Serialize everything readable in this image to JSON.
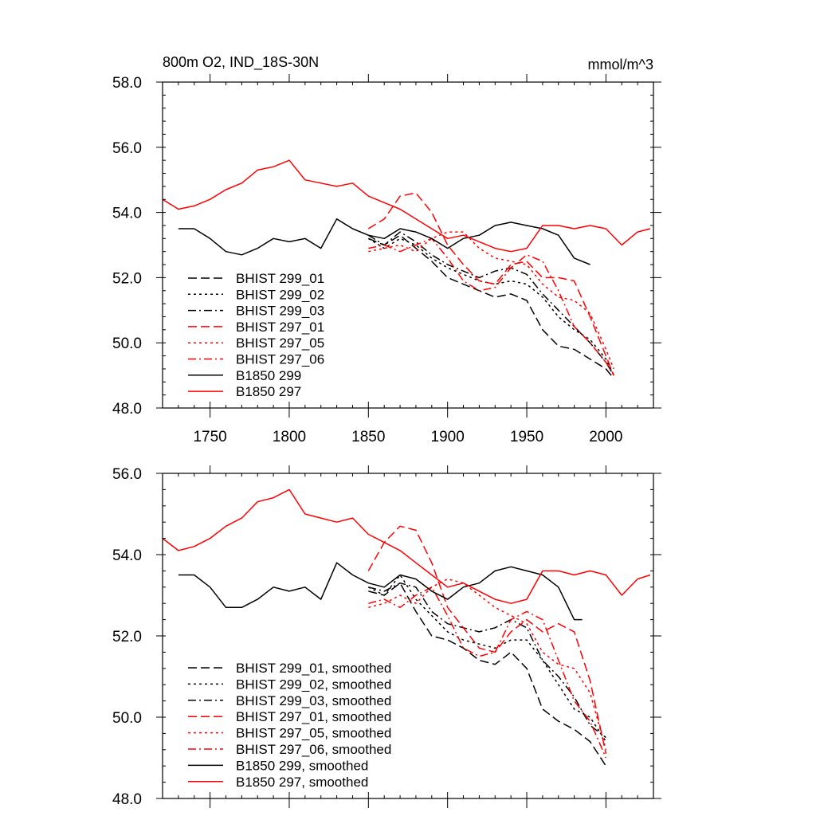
{
  "chart_data": [
    {
      "type": "line",
      "title": "800m O2, IND_18S-30N",
      "units_label": "mmol/m^3",
      "xlim": [
        1720,
        2030
      ],
      "ylim": [
        48,
        58
      ],
      "xticks": [
        1750,
        1800,
        1850,
        1900,
        1950,
        2000
      ],
      "xtick_labels": [
        "1750",
        "1800",
        "1850",
        "1900",
        "1950",
        "2000"
      ],
      "yticks": [
        48,
        50,
        52,
        54,
        56,
        58
      ],
      "ytick_labels": [
        "48.0",
        "50.0",
        "52.0",
        "54.0",
        "56.0",
        "58.0"
      ],
      "grid": false,
      "legend_position": "lower-left",
      "series": [
        {
          "name": "BHIST 299_01",
          "color": "#000000",
          "dash": "dash",
          "x": [
            1850,
            1860,
            1870,
            1880,
            1890,
            1900,
            1910,
            1920,
            1930,
            1940,
            1950,
            1960,
            1970,
            1980,
            1990,
            2000,
            2005
          ],
          "y": [
            53.2,
            53.0,
            53.3,
            52.9,
            52.5,
            52.0,
            51.8,
            51.6,
            51.4,
            51.5,
            51.3,
            50.4,
            49.9,
            49.8,
            49.5,
            49.2,
            48.9
          ]
        },
        {
          "name": "BHIST 299_02",
          "color": "#000000",
          "dash": "dot",
          "x": [
            1850,
            1860,
            1870,
            1880,
            1890,
            1900,
            1910,
            1920,
            1930,
            1940,
            1950,
            1960,
            1970,
            1980,
            1990,
            2000,
            2005
          ],
          "y": [
            53.2,
            52.9,
            53.2,
            53.0,
            52.6,
            52.3,
            52.1,
            51.9,
            51.8,
            51.9,
            51.8,
            51.4,
            50.8,
            50.4,
            50.1,
            49.5,
            49.0
          ]
        },
        {
          "name": "BHIST 299_03",
          "color": "#000000",
          "dash": "dashdot",
          "x": [
            1850,
            1860,
            1870,
            1880,
            1890,
            1900,
            1910,
            1920,
            1930,
            1940,
            1950,
            1960,
            1970,
            1980,
            1990,
            2000,
            2005
          ],
          "y": [
            53.3,
            53.0,
            53.4,
            53.1,
            52.7,
            52.4,
            52.2,
            52.0,
            52.2,
            52.3,
            52.1,
            51.5,
            51.0,
            50.5,
            50.0,
            49.4,
            49.0
          ]
        },
        {
          "name": "BHIST 297_01",
          "color": "#ff0000",
          "dash": "dash",
          "x": [
            1850,
            1860,
            1870,
            1880,
            1890,
            1900,
            1910,
            1920,
            1930,
            1940,
            1950,
            1960,
            1970,
            1980,
            1990,
            2000,
            2005
          ],
          "y": [
            53.5,
            53.8,
            54.5,
            54.6,
            54.0,
            53.0,
            52.4,
            51.9,
            51.8,
            52.4,
            52.5,
            52.0,
            52.0,
            51.9,
            50.8,
            49.6,
            49.0
          ]
        },
        {
          "name": "BHIST 297_05",
          "color": "#ff0000",
          "dash": "dot",
          "x": [
            1850,
            1860,
            1870,
            1880,
            1890,
            1900,
            1910,
            1920,
            1930,
            1940,
            1950,
            1960,
            1970,
            1980,
            1990,
            2000,
            2005
          ],
          "y": [
            52.8,
            52.9,
            53.0,
            52.8,
            53.2,
            53.4,
            53.4,
            52.9,
            52.6,
            52.5,
            52.4,
            51.8,
            51.4,
            51.3,
            50.9,
            49.8,
            49.2
          ]
        },
        {
          "name": "BHIST 297_06",
          "color": "#ff0000",
          "dash": "dashdot",
          "x": [
            1850,
            1860,
            1870,
            1880,
            1890,
            1900,
            1910,
            1920,
            1930,
            1940,
            1950,
            1960,
            1970,
            1980,
            1990,
            2000,
            2005
          ],
          "y": [
            52.9,
            53.0,
            52.8,
            53.0,
            53.2,
            52.6,
            51.9,
            51.6,
            51.7,
            52.3,
            52.7,
            52.5,
            51.6,
            50.5,
            50.0,
            49.4,
            49.0
          ]
        },
        {
          "name": "B1850 299",
          "color": "#000000",
          "dash": "solid",
          "x": [
            1730,
            1740,
            1750,
            1760,
            1770,
            1780,
            1790,
            1800,
            1810,
            1820,
            1830,
            1840,
            1850,
            1860,
            1870,
            1880,
            1890,
            1900,
            1910,
            1920,
            1930,
            1940,
            1950,
            1960,
            1970,
            1980,
            1990
          ],
          "y": [
            53.5,
            53.5,
            53.2,
            52.8,
            52.7,
            52.9,
            53.2,
            53.1,
            53.2,
            52.9,
            53.8,
            53.5,
            53.3,
            53.2,
            53.5,
            53.4,
            53.2,
            52.9,
            53.2,
            53.3,
            53.6,
            53.7,
            53.6,
            53.5,
            53.3,
            52.6,
            52.4
          ]
        },
        {
          "name": "B1850 297",
          "color": "#ff0000",
          "dash": "solid",
          "x": [
            1720,
            1730,
            1740,
            1750,
            1760,
            1770,
            1780,
            1790,
            1800,
            1810,
            1820,
            1830,
            1840,
            1850,
            1860,
            1870,
            1880,
            1890,
            1900,
            1910,
            1920,
            1930,
            1940,
            1950,
            1960,
            1970,
            1980,
            1990,
            2000,
            2010,
            2020,
            2028
          ],
          "y": [
            54.4,
            54.1,
            54.2,
            54.4,
            54.7,
            54.9,
            55.3,
            55.4,
            55.6,
            55.0,
            54.9,
            54.8,
            54.9,
            54.5,
            54.3,
            54.1,
            53.8,
            53.5,
            53.2,
            53.3,
            53.1,
            52.9,
            52.8,
            52.9,
            53.6,
            53.6,
            53.5,
            53.6,
            53.5,
            53.0,
            53.4,
            53.5
          ]
        }
      ]
    },
    {
      "type": "line",
      "xlim": [
        1720,
        2030
      ],
      "ylim": [
        48,
        56
      ],
      "xticks": [
        1750,
        1800,
        1850,
        1900,
        1950,
        2000
      ],
      "yticks": [
        48,
        50,
        52,
        54,
        56
      ],
      "ytick_labels": [
        "48.0",
        "50.0",
        "52.0",
        "54.0",
        "56.0"
      ],
      "grid": false,
      "legend_position": "lower-left",
      "series": [
        {
          "name": "BHIST 299_01, smoothed",
          "color": "#000000",
          "dash": "dash",
          "x": [
            1850,
            1860,
            1870,
            1880,
            1890,
            1900,
            1910,
            1920,
            1930,
            1940,
            1950,
            1960,
            1970,
            1980,
            1990,
            2000
          ],
          "y": [
            53.1,
            53.0,
            53.3,
            52.6,
            52.0,
            51.9,
            51.7,
            51.4,
            51.3,
            51.6,
            51.2,
            50.2,
            49.9,
            49.7,
            49.4,
            48.8
          ]
        },
        {
          "name": "BHIST 299_02, smoothed",
          "color": "#000000",
          "dash": "dot",
          "x": [
            1850,
            1860,
            1870,
            1880,
            1890,
            1900,
            1910,
            1920,
            1930,
            1940,
            1950,
            1960,
            1970,
            1980,
            1990,
            2000
          ],
          "y": [
            53.2,
            53.0,
            53.5,
            52.9,
            52.5,
            52.1,
            51.9,
            51.8,
            51.7,
            51.9,
            51.9,
            51.4,
            50.8,
            50.2,
            50.0,
            49.4
          ]
        },
        {
          "name": "BHIST 299_03, smoothed",
          "color": "#000000",
          "dash": "dashdot",
          "x": [
            1850,
            1860,
            1870,
            1880,
            1890,
            1900,
            1910,
            1920,
            1930,
            1940,
            1950,
            1960,
            1970,
            1980,
            1990,
            2000
          ],
          "y": [
            53.2,
            53.1,
            53.3,
            53.2,
            52.6,
            52.3,
            52.2,
            52.1,
            52.2,
            52.4,
            52.2,
            51.4,
            51.0,
            50.5,
            49.8,
            49.5
          ]
        },
        {
          "name": "BHIST 297_01, smoothed",
          "color": "#ff0000",
          "dash": "dash",
          "x": [
            1850,
            1860,
            1870,
            1880,
            1890,
            1900,
            1910,
            1920,
            1930,
            1940,
            1950,
            1960,
            1970,
            1980,
            1990,
            2000
          ],
          "y": [
            53.6,
            54.3,
            54.7,
            54.6,
            53.8,
            52.7,
            52.2,
            51.7,
            51.6,
            52.1,
            52.4,
            52.1,
            52.3,
            52.1,
            50.9,
            49.1
          ]
        },
        {
          "name": "BHIST 297_05, smoothed",
          "color": "#ff0000",
          "dash": "dot",
          "x": [
            1850,
            1860,
            1870,
            1880,
            1890,
            1900,
            1910,
            1920,
            1930,
            1940,
            1950,
            1960,
            1970,
            1980,
            1990,
            2000
          ],
          "y": [
            52.7,
            52.8,
            53.0,
            52.8,
            53.2,
            53.4,
            53.3,
            53.0,
            52.7,
            52.5,
            52.3,
            51.6,
            51.3,
            51.2,
            50.6,
            49.2
          ]
        },
        {
          "name": "BHIST 297_06, smoothed",
          "color": "#ff0000",
          "dash": "dashdot",
          "x": [
            1850,
            1860,
            1870,
            1880,
            1890,
            1900,
            1910,
            1920,
            1930,
            1940,
            1950,
            1960,
            1970,
            1980,
            1990,
            2000
          ],
          "y": [
            52.8,
            52.9,
            52.7,
            53.0,
            53.2,
            52.5,
            51.7,
            51.5,
            51.6,
            52.4,
            52.6,
            52.4,
            51.4,
            50.4,
            49.9,
            49.0
          ]
        },
        {
          "name": "B1850 299, smoothed",
          "color": "#000000",
          "dash": "solid",
          "x": [
            1730,
            1740,
            1750,
            1760,
            1770,
            1780,
            1790,
            1800,
            1810,
            1820,
            1830,
            1840,
            1850,
            1860,
            1870,
            1880,
            1890,
            1900,
            1910,
            1920,
            1930,
            1940,
            1950,
            1960,
            1970,
            1980,
            1985
          ],
          "y": [
            53.5,
            53.5,
            53.2,
            52.7,
            52.7,
            52.9,
            53.2,
            53.1,
            53.2,
            52.9,
            53.8,
            53.5,
            53.3,
            53.2,
            53.5,
            53.4,
            53.1,
            52.9,
            53.2,
            53.3,
            53.6,
            53.7,
            53.6,
            53.5,
            53.2,
            52.4,
            52.4
          ]
        },
        {
          "name": "B1850 297, smoothed",
          "color": "#ff0000",
          "dash": "solid",
          "x": [
            1720,
            1730,
            1740,
            1750,
            1760,
            1770,
            1780,
            1790,
            1800,
            1810,
            1820,
            1830,
            1840,
            1850,
            1860,
            1870,
            1880,
            1890,
            1900,
            1910,
            1920,
            1930,
            1940,
            1950,
            1960,
            1970,
            1980,
            1990,
            2000,
            2010,
            2020,
            2028
          ],
          "y": [
            54.4,
            54.1,
            54.2,
            54.4,
            54.7,
            54.9,
            55.3,
            55.4,
            55.6,
            55.0,
            54.9,
            54.8,
            54.9,
            54.5,
            54.3,
            54.1,
            53.8,
            53.5,
            53.2,
            53.3,
            53.1,
            52.9,
            52.8,
            52.9,
            53.6,
            53.6,
            53.5,
            53.6,
            53.5,
            53.0,
            53.4,
            53.5
          ]
        }
      ]
    }
  ]
}
